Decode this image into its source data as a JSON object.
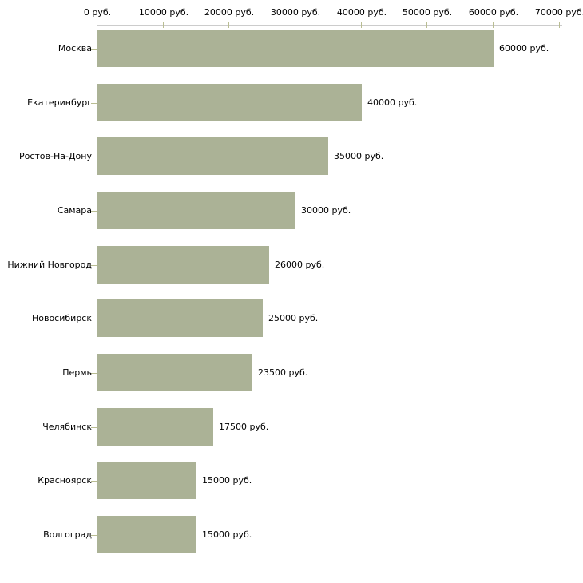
{
  "chart_data": {
    "type": "bar",
    "orientation": "horizontal",
    "title": "",
    "xlabel": "",
    "ylabel": "",
    "unit": "руб.",
    "categories": [
      "Москва",
      "Екатеринбург",
      "Ростов-На-Дону",
      "Самара",
      "Нижний Новгород",
      "Новосибирск",
      "Пермь",
      "Челябинск",
      "Красноярск",
      "Волгоград"
    ],
    "values": [
      60000,
      40000,
      35000,
      30000,
      26000,
      25000,
      23500,
      17500,
      15000,
      15000
    ],
    "value_labels": [
      "60000 руб.",
      "40000 руб.",
      "35000 руб.",
      "30000 руб.",
      "26000 руб.",
      "25000 руб.",
      "23500 руб.",
      "17500 руб.",
      "15000 руб.",
      "15000 руб."
    ],
    "x_tick_values": [
      0,
      10000,
      20000,
      30000,
      40000,
      50000,
      60000,
      70000
    ],
    "x_tick_labels": [
      "0 руб.",
      "10000 руб.",
      "20000 руб.",
      "30000 руб.",
      "40000 руб.",
      "50000 руб.",
      "60000 руб.",
      "70000 руб."
    ],
    "xlim": [
      0,
      70000
    ],
    "grid": "off",
    "legend": "none",
    "axis_position": "top-left",
    "bar_color": "#abb296",
    "axis_line_color": "#cccccc",
    "tick_mark_color": "#b9bd92",
    "text_color": "#000000",
    "background_color": "#ffffff"
  }
}
